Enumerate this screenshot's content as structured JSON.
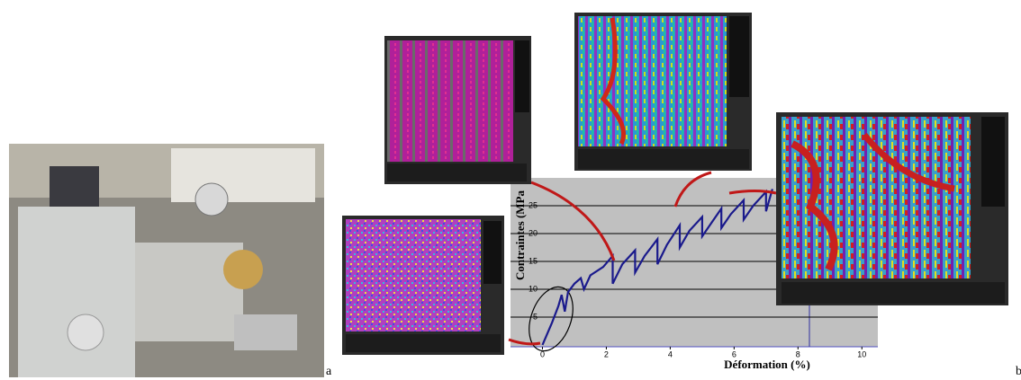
{
  "panel_labels": {
    "left": "a",
    "right": "b"
  },
  "chart_data": {
    "type": "line",
    "x_label": "Déformation (%)",
    "y_label": "Contraintes (MPa",
    "xlim": [
      -1,
      10.5
    ],
    "ylim": [
      0,
      30
    ],
    "xticks": [
      0,
      2,
      4,
      6,
      8,
      10
    ],
    "yticks": [
      5,
      10,
      15,
      20,
      25
    ],
    "grid": true,
    "color": "#1a1a8c",
    "x": [
      0,
      0.3,
      0.5,
      0.6,
      0.7,
      0.8,
      1.0,
      1.2,
      1.3,
      1.5,
      1.9,
      2.2,
      2.2,
      2.5,
      2.9,
      2.9,
      3.2,
      3.6,
      3.6,
      3.9,
      4.3,
      4.3,
      4.6,
      5.0,
      5.0,
      5.3,
      5.6,
      5.6,
      5.9,
      6.3,
      6.3,
      6.6,
      7.0,
      7.0,
      7.2
    ],
    "values": [
      0,
      4,
      7,
      9,
      6,
      9.5,
      11,
      12,
      10,
      12.5,
      14,
      16,
      11,
      14.5,
      17,
      13,
      16,
      19,
      14.5,
      18,
      21.5,
      17.5,
      20.5,
      23,
      19.5,
      22,
      24.5,
      21,
      23.5,
      26,
      22.5,
      25,
      27.5,
      24,
      28
    ]
  }
}
